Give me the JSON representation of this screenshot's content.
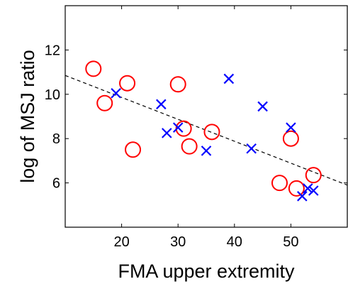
{
  "chart_data": {
    "type": "scatter",
    "title": "",
    "xlabel": "FMA upper extremity",
    "ylabel": "log of MSJ ratio",
    "xlim": [
      10,
      60
    ],
    "ylim": [
      4,
      14
    ],
    "xticks": [
      20,
      30,
      40,
      50
    ],
    "yticks": [
      6,
      8,
      10,
      12
    ],
    "grid": false,
    "legend": "none",
    "series": [
      {
        "marker": "circle",
        "color": "#ff0000",
        "points": [
          {
            "x": 15,
            "y": 11.15
          },
          {
            "x": 17,
            "y": 9.6
          },
          {
            "x": 21,
            "y": 10.5
          },
          {
            "x": 22,
            "y": 7.5
          },
          {
            "x": 30,
            "y": 10.45
          },
          {
            "x": 31,
            "y": 8.45
          },
          {
            "x": 32,
            "y": 7.65
          },
          {
            "x": 36,
            "y": 8.3
          },
          {
            "x": 48,
            "y": 6.0
          },
          {
            "x": 50,
            "y": 8.0
          },
          {
            "x": 51,
            "y": 5.75
          },
          {
            "x": 54,
            "y": 6.35
          }
        ]
      },
      {
        "marker": "cross",
        "color": "#0000ff",
        "points": [
          {
            "x": 19,
            "y": 10.05
          },
          {
            "x": 27,
            "y": 9.55
          },
          {
            "x": 28,
            "y": 8.25
          },
          {
            "x": 30,
            "y": 8.5
          },
          {
            "x": 35,
            "y": 7.45
          },
          {
            "x": 39,
            "y": 10.7
          },
          {
            "x": 43,
            "y": 7.55
          },
          {
            "x": 45,
            "y": 9.45
          },
          {
            "x": 50,
            "y": 8.5
          },
          {
            "x": 52,
            "y": 5.4
          },
          {
            "x": 53,
            "y": 5.75
          },
          {
            "x": 54,
            "y": 5.65
          }
        ]
      }
    ],
    "trendline": {
      "style": "dashed",
      "color": "#000000",
      "start": {
        "x": 10,
        "y": 10.85
      },
      "end": {
        "x": 60,
        "y": 5.9
      }
    }
  }
}
